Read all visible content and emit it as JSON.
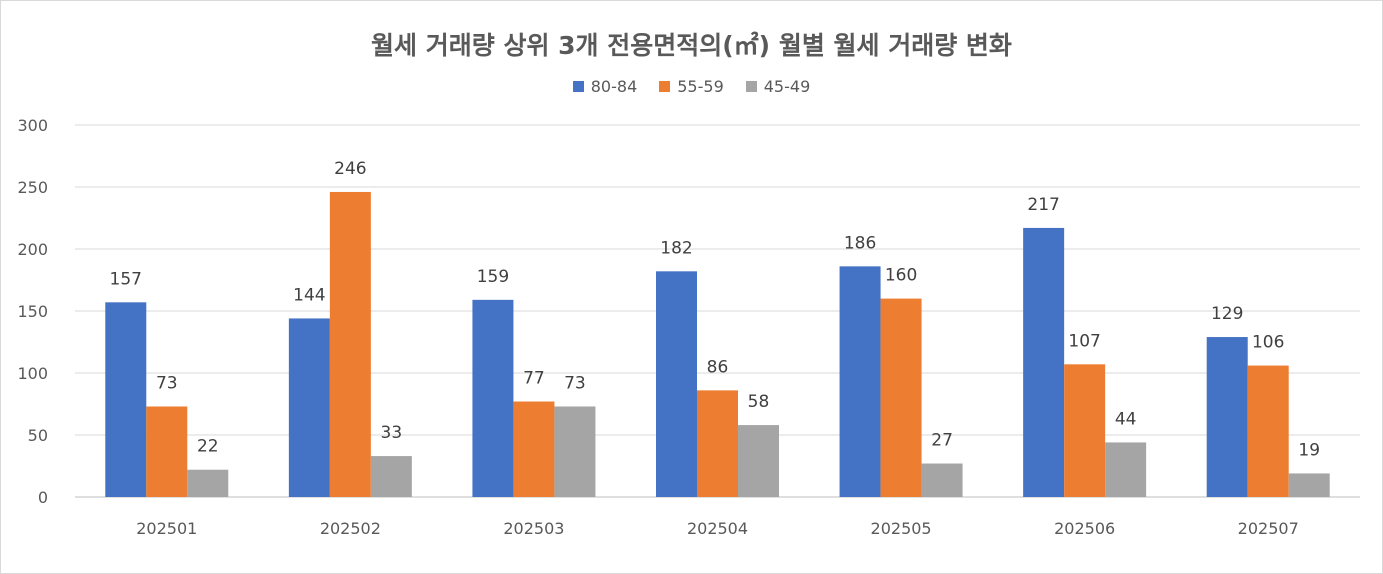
{
  "chart_data": {
    "type": "bar",
    "title": "월세 거래량 상위 3개 전용면적의(㎡) 월별 월세 거래량 변화",
    "categories": [
      "202501",
      "202502",
      "202503",
      "202504",
      "202505",
      "202506",
      "202507"
    ],
    "series": [
      {
        "name": "80-84",
        "color": "#4472c4",
        "values": [
          157,
          144,
          159,
          182,
          186,
          217,
          129
        ]
      },
      {
        "name": "55-59",
        "color": "#ed7d31",
        "values": [
          73,
          246,
          77,
          86,
          160,
          107,
          106
        ]
      },
      {
        "name": "45-49",
        "color": "#a5a5a5",
        "values": [
          22,
          33,
          73,
          58,
          27,
          44,
          19
        ]
      }
    ],
    "yticks": [
      0,
      50,
      100,
      150,
      200,
      250,
      300
    ],
    "ylim": [
      0,
      300
    ],
    "xlabel": "",
    "ylabel": "",
    "grid": true,
    "legend_position": "top"
  }
}
